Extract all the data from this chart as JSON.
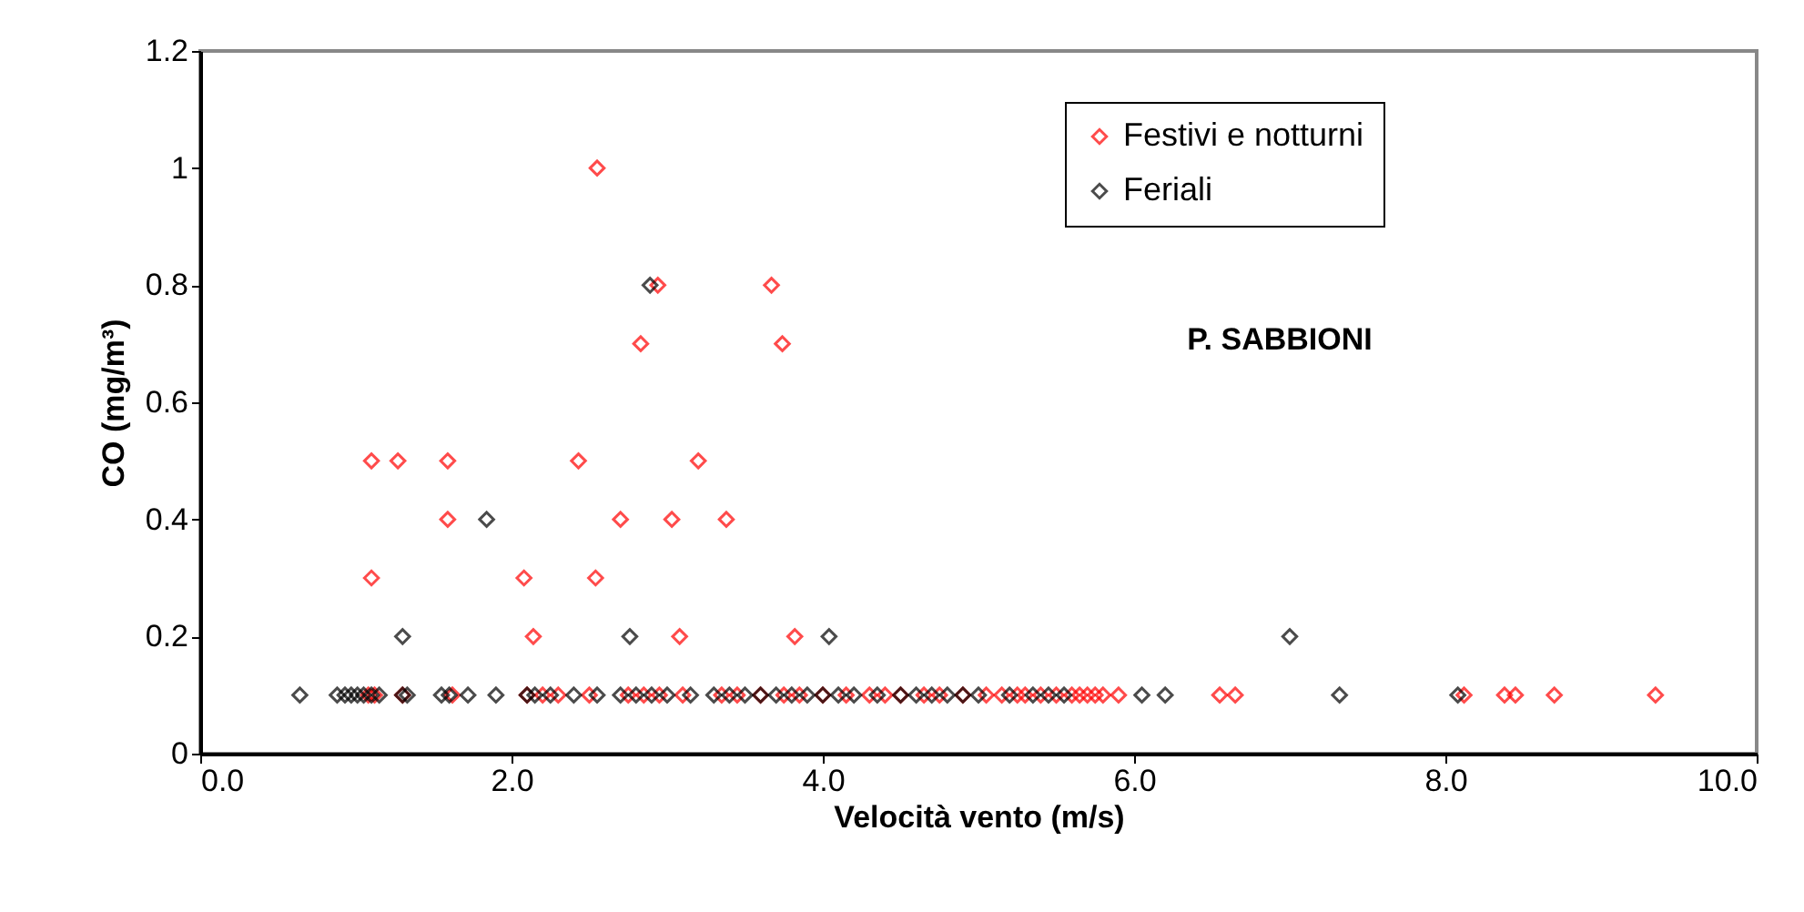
{
  "chart_data": {
    "type": "scatter",
    "xlabel": "Velocità vento (m/s)",
    "ylabel": "CO (mg/m³)",
    "annotations": [
      "P. SABBIONI"
    ],
    "xlim": [
      0,
      10
    ],
    "ylim": [
      0,
      1.2
    ],
    "xticks": [
      {
        "value": 0,
        "label": "0.0"
      },
      {
        "value": 2,
        "label": "2.0"
      },
      {
        "value": 4,
        "label": "4.0"
      },
      {
        "value": 6,
        "label": "6.0"
      },
      {
        "value": 8,
        "label": "8.0"
      },
      {
        "value": 10,
        "label": "10.0"
      }
    ],
    "yticks": [
      0,
      0.2,
      0.4,
      0.6,
      0.8,
      1,
      1.2
    ],
    "grid": false,
    "legend": "top right",
    "marker": "diamond",
    "series": [
      {
        "name": "Festivi e notturni",
        "color": "#ff0000",
        "x": [
          2.55,
          2.94,
          3.67,
          2.83,
          3.74,
          1.1,
          1.27,
          1.59,
          2.43,
          3.2,
          1.59,
          2.7,
          3.03,
          3.38,
          1.1,
          2.54,
          2.08,
          2.14,
          3.08,
          3.82,
          1.08,
          1.12,
          1.3,
          1.62,
          2.1,
          2.2,
          2.3,
          2.5,
          2.75,
          2.85,
          2.95,
          3.1,
          3.35,
          3.45,
          3.6,
          3.75,
          3.85,
          4.0,
          4.15,
          4.3,
          4.4,
          4.5,
          4.65,
          4.75,
          4.9,
          5.05,
          5.15,
          5.25,
          5.3,
          5.4,
          5.5,
          5.6,
          5.65,
          5.7,
          5.75,
          5.8,
          5.9,
          6.55,
          6.65,
          8.12,
          8.38,
          8.45,
          8.7,
          9.35
        ],
        "values": [
          1,
          0.8,
          0.8,
          0.7,
          0.7,
          0.5,
          0.5,
          0.5,
          0.5,
          0.5,
          0.4,
          0.4,
          0.4,
          0.4,
          0.3,
          0.3,
          0.3,
          0.2,
          0.2,
          0.2,
          0.1,
          0.1,
          0.1,
          0.1,
          0.1,
          0.1,
          0.1,
          0.1,
          0.1,
          0.1,
          0.1,
          0.1,
          0.1,
          0.1,
          0.1,
          0.1,
          0.1,
          0.1,
          0.1,
          0.1,
          0.1,
          0.1,
          0.1,
          0.1,
          0.1,
          0.1,
          0.1,
          0.1,
          0.1,
          0.1,
          0.1,
          0.1,
          0.1,
          0.1,
          0.1,
          0.1,
          0.1,
          0.1,
          0.1,
          0.1,
          0.1,
          0.1,
          0.1,
          0.1
        ]
      },
      {
        "name": "Feriali",
        "color": "#000000",
        "x": [
          2.89,
          1.84,
          1.3,
          2.76,
          4.04,
          7.0,
          0.64,
          0.88,
          0.93,
          0.97,
          1.01,
          1.05,
          1.1,
          1.15,
          1.3,
          1.33,
          1.55,
          1.6,
          1.72,
          1.9,
          2.1,
          2.15,
          2.25,
          2.4,
          2.55,
          2.7,
          2.8,
          2.9,
          3.0,
          3.15,
          3.3,
          3.4,
          3.5,
          3.6,
          3.7,
          3.8,
          3.9,
          4.0,
          4.1,
          4.2,
          4.35,
          4.5,
          4.6,
          4.7,
          4.8,
          4.9,
          5.0,
          5.2,
          5.35,
          5.45,
          5.55,
          6.05,
          6.2,
          7.32,
          8.08
        ],
        "values": [
          0.8,
          0.4,
          0.2,
          0.2,
          0.2,
          0.2,
          0.1,
          0.1,
          0.1,
          0.1,
          0.1,
          0.1,
          0.1,
          0.1,
          0.1,
          0.1,
          0.1,
          0.1,
          0.1,
          0.1,
          0.1,
          0.1,
          0.1,
          0.1,
          0.1,
          0.1,
          0.1,
          0.1,
          0.1,
          0.1,
          0.1,
          0.1,
          0.1,
          0.1,
          0.1,
          0.1,
          0.1,
          0.1,
          0.1,
          0.1,
          0.1,
          0.1,
          0.1,
          0.1,
          0.1,
          0.1,
          0.1,
          0.1,
          0.1,
          0.1,
          0.1,
          0.1,
          0.1,
          0.1,
          0.1
        ]
      }
    ]
  }
}
